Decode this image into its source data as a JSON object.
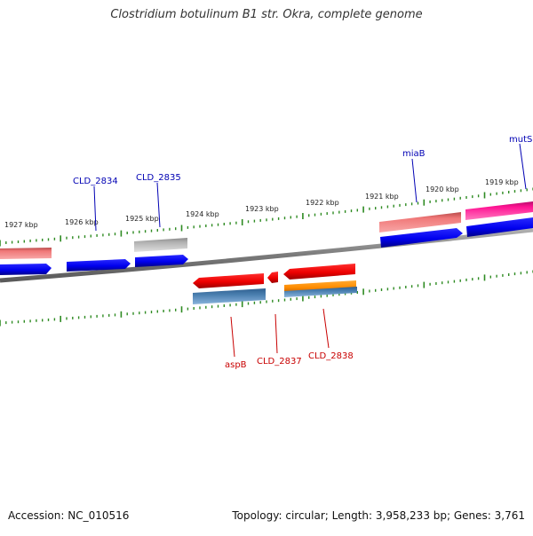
{
  "title": "Clostridium botulinum B1 str. Okra, complete genome",
  "footer": {
    "accession": "Accession: NC_010516",
    "summary": "Topology: circular; Length: 3,958,233 bp; Genes: 3,761"
  },
  "colors": {
    "backbone": "#888888",
    "tick_minor": "#2e8b22",
    "tick_label": "#222222",
    "forward_label": "#0000b4",
    "reverse_label": "#c80000",
    "blue_gene": "#0000ee",
    "red_gene": "#ee0000",
    "pink_gene": "#f07878",
    "magenta_gene": "#ff1493",
    "gray_gene": "#aaaaaa",
    "steel_gene": "#4a7fb0",
    "orange_gene": "#ff8c00"
  },
  "ticks": [
    "1927 kbp",
    "1926 kbp",
    "1925 kbp",
    "1924 kbp",
    "1923 kbp",
    "1922 kbp",
    "1921 kbp",
    "1920 kbp",
    "1919 kbp"
  ],
  "gene_labels": {
    "forward": [
      "CLD_2834",
      "CLD_2835",
      "miaB",
      "mutS"
    ],
    "reverse": [
      "aspB",
      "CLD_2837",
      "CLD_2838"
    ]
  }
}
